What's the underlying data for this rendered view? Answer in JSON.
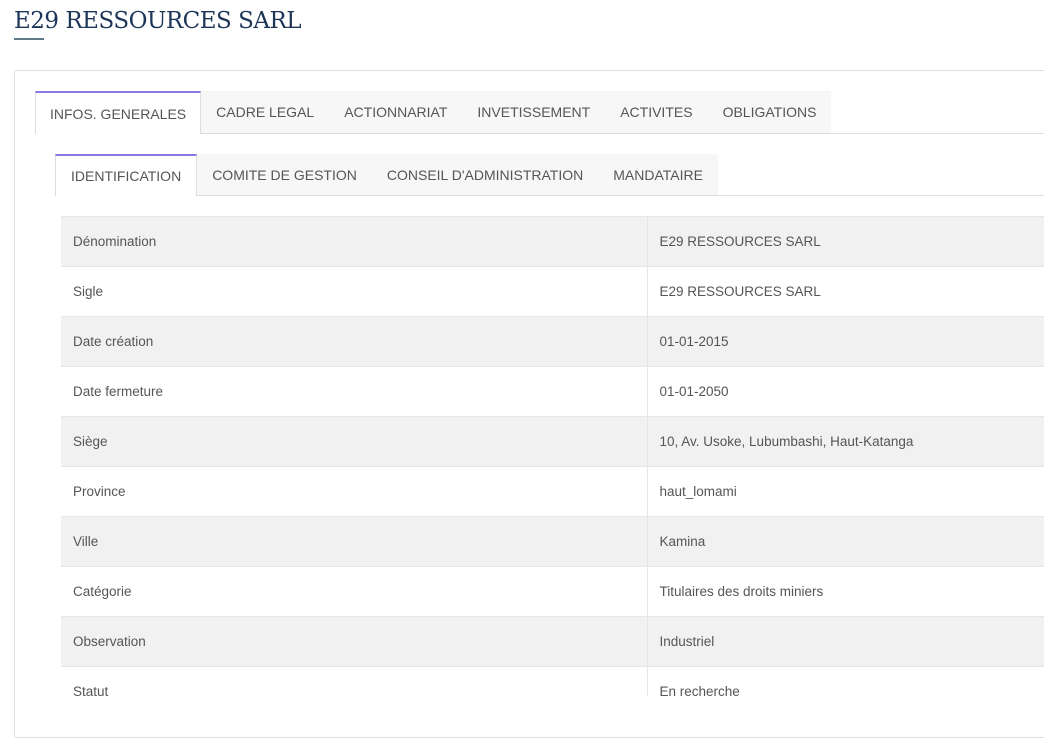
{
  "header": {
    "title": "E29 RESSOURCES SARL"
  },
  "tabs": [
    "INFOS. GENERALES",
    "CADRE LEGAL",
    "ACTIONNARIAT",
    "INVETISSEMENT",
    "ACTIVITES",
    "OBLIGATIONS"
  ],
  "subtabs": [
    "IDENTIFICATION",
    "COMITE DE GESTION",
    "CONSEIL D'ADMINISTRATION",
    "MANDATAIRE"
  ],
  "rows": [
    {
      "label": "Dénomination",
      "value": "E29 RESSOURCES SARL"
    },
    {
      "label": "Sigle",
      "value": "E29 RESSOURCES SARL"
    },
    {
      "label": "Date création",
      "value": "01-01-2015"
    },
    {
      "label": "Date fermeture",
      "value": "01-01-2050"
    },
    {
      "label": "Siège",
      "value": "10, Av. Usoke, Lubumbashi, Haut-Katanga"
    },
    {
      "label": "Province",
      "value": "haut_lomami"
    },
    {
      "label": "Ville",
      "value": "Kamina"
    },
    {
      "label": "Catégorie",
      "value": "Titulaires des droits miniers"
    },
    {
      "label": "Observation",
      "value": "Industriel"
    },
    {
      "label": "Statut",
      "value": "En recherche"
    }
  ],
  "colors": {
    "accent": "#8b78e6",
    "title": "#1d3557"
  }
}
